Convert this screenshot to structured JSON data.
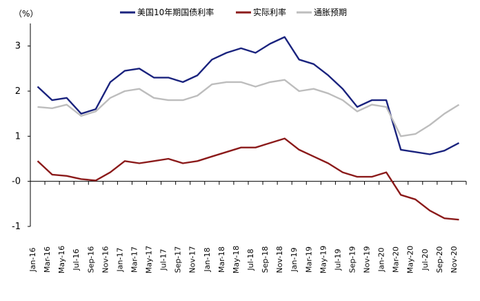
{
  "chart_data": {
    "type": "line",
    "unit_label": "（%）",
    "ylim": [
      -1,
      3.5
    ],
    "y_ticks": [
      "-1",
      "-0",
      "1",
      "2",
      "3"
    ],
    "y_tick_values": [
      -1,
      0,
      1,
      2,
      3
    ],
    "zero_line_value": 0,
    "x_categories": [
      "Jan-16",
      "Mar-16",
      "May-16",
      "Jul-16",
      "Sep-16",
      "Nov-16",
      "Jan-17",
      "Mar-17",
      "May-17",
      "Jul-17",
      "Sep-17",
      "Nov-17",
      "Jan-18",
      "Mar-18",
      "May-18",
      "Jul-18",
      "Sep-18",
      "Nov-18",
      "Jan-19",
      "Mar-19",
      "May-19",
      "Jul-19",
      "Sep-19",
      "Nov-19",
      "Jan-20",
      "Mar-20",
      "May-20",
      "Jul-20",
      "Sep-20",
      "Nov-20"
    ],
    "legend_position": "top",
    "series": [
      {
        "name": "美国10年期国债利率",
        "color": "#1a237e",
        "values": [
          2.1,
          1.8,
          1.85,
          1.5,
          1.6,
          2.2,
          2.45,
          2.5,
          2.3,
          2.3,
          2.2,
          2.35,
          2.7,
          2.85,
          2.95,
          2.85,
          3.05,
          3.2,
          2.7,
          2.6,
          2.35,
          2.05,
          1.65,
          1.8,
          1.8,
          0.7,
          0.65,
          0.6,
          0.68,
          0.85
        ]
      },
      {
        "name": "实际利率",
        "color": "#8b1a1a",
        "values": [
          0.45,
          0.15,
          0.12,
          0.05,
          0.02,
          0.2,
          0.45,
          0.4,
          0.45,
          0.5,
          0.4,
          0.45,
          0.55,
          0.65,
          0.75,
          0.75,
          0.85,
          0.95,
          0.7,
          0.55,
          0.4,
          0.2,
          0.1,
          0.1,
          0.2,
          -0.3,
          -0.4,
          -0.65,
          -0.82,
          -0.85
        ]
      },
      {
        "name": "通胀预期",
        "color": "#bdbdbd",
        "values": [
          1.65,
          1.62,
          1.7,
          1.45,
          1.55,
          1.85,
          2.0,
          2.05,
          1.85,
          1.8,
          1.8,
          1.9,
          2.15,
          2.2,
          2.2,
          2.1,
          2.2,
          2.25,
          2.0,
          2.05,
          1.95,
          1.8,
          1.55,
          1.7,
          1.65,
          1.0,
          1.05,
          1.25,
          1.5,
          1.7
        ]
      }
    ]
  }
}
